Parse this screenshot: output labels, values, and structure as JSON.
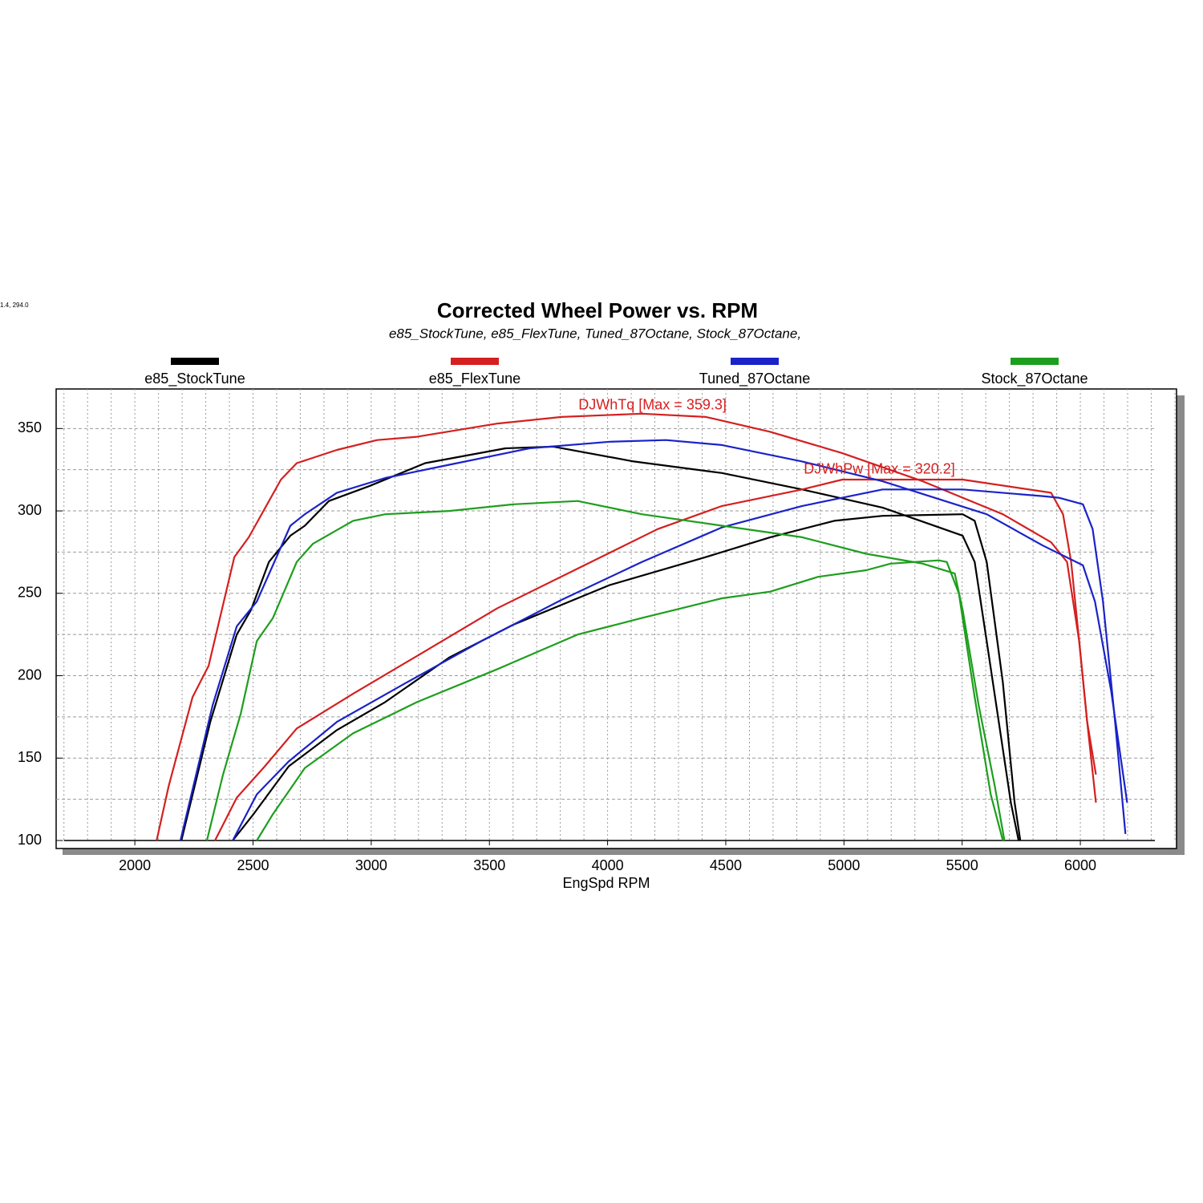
{
  "chart_data": {
    "type": "line",
    "cursor_readout": "1.4, 294.0",
    "title": "Corrected Wheel Power vs. RPM",
    "subtitle": "e85_StockTune, e85_FlexTune, Tuned_87Octane, Stock_87Octane,",
    "x_label": "EngSpd RPM",
    "xlim": [
      1667,
      6407
    ],
    "ylim": [
      100,
      374
    ],
    "xticks": [
      2000,
      2500,
      3000,
      3500,
      4000,
      4500,
      5000,
      5500,
      6000
    ],
    "yticks": [
      100,
      150,
      200,
      250,
      300,
      350
    ],
    "grid": {
      "x_step": 100,
      "y_step": 25
    },
    "annotations": [
      {
        "text": "DJWhTq [Max = 359.3]",
        "x": 4190,
        "y": 364
      },
      {
        "text": "DJWhPw [Max = 320.2]",
        "x": 5150,
        "y": 325
      }
    ],
    "series": [
      {
        "name": "e85_StockTune",
        "color": "#000000",
        "curves": [
          {
            "x": [
              2197,
              2319,
              2431,
              2492,
              2567,
              2658,
              2719,
              2821,
              2991,
              3228,
              3568,
              3771,
              4111,
              4484,
              4823,
              5163,
              5502,
              5553,
              5604,
              5706,
              5739
            ],
            "values": [
              100,
              172,
              225,
              240,
              269,
              285,
              291,
              306,
              315,
              329,
              338,
              339,
              330,
              323,
              313,
              302,
              285,
              269,
              221,
              123,
              100
            ]
          },
          {
            "x": [
              2414,
              2502,
              2651,
              2855,
              3059,
              3330,
              3602,
              4009,
              4416,
              4688,
              4959,
              5163,
              5502,
              5553,
              5604,
              5672,
              5722,
              5746
            ],
            "values": [
              100,
              116,
              145,
              167,
              184,
              211,
              231,
              255,
              272,
              284,
              294,
              297,
              298,
              294,
              269,
              196,
              123,
              100
            ]
          }
        ]
      },
      {
        "name": "e85_FlexTune",
        "color": "#d42020",
        "curves": [
          {
            "x": [
              2092,
              2143,
              2244,
              2312,
              2421,
              2482,
              2618,
              2685,
              2855,
              3025,
              3194,
              3534,
              3805,
              4145,
              4416,
              4688,
              4993,
              5333,
              5672,
              5876,
              5944,
              5995,
              6029,
              6066
            ],
            "values": [
              100,
              133,
              187,
              206,
              272,
              284,
              319,
              329,
              337,
              343,
              345,
              353,
              357,
              359,
              357,
              348,
              335,
              318,
              298,
              281,
              269,
              221,
              172,
              123
            ]
          },
          {
            "x": [
              2339,
              2431,
              2550,
              2685,
              2923,
              3194,
              3534,
              3873,
              4212,
              4484,
              4823,
              4993,
              5333,
              5502,
              5876,
              5927,
              5961,
              5995,
              6029,
              6066
            ],
            "values": [
              100,
              126,
              145,
              168,
              189,
              212,
              241,
              265,
              289,
              303,
              313,
              319,
              319,
              319,
              311,
              298,
              269,
              221,
              172,
              140
            ]
          }
        ]
      },
      {
        "name": "Tuned_87Octane",
        "color": "#1a23c8",
        "curves": [
          {
            "x": [
              2193,
              2329,
              2431,
              2516,
              2658,
              2719,
              2855,
              3059,
              3330,
              3670,
              4009,
              4247,
              4484,
              4823,
              5163,
              5604,
              5841,
              6011,
              6062,
              6130,
              6198
            ],
            "values": [
              100,
              182,
              230,
              245,
              291,
              298,
              311,
              320,
              328,
              338,
              342,
              343,
              340,
              330,
              318,
              298,
              279,
              267,
              245,
              191,
              123
            ]
          },
          {
            "x": [
              2414,
              2516,
              2651,
              2855,
              3126,
              3466,
              3805,
              4145,
              4484,
              4823,
              5163,
              5502,
              5841,
              5909,
              6011,
              6052,
              6096,
              6147,
              6191
            ],
            "values": [
              100,
              128,
              148,
              172,
              194,
              221,
              246,
              269,
              290,
              303,
              313,
              313,
              309,
              308,
              304,
              289,
              245,
              172,
              104
            ]
          }
        ]
      },
      {
        "name": "Stock_87Octane",
        "color": "#1e9e1e",
        "curves": [
          {
            "x": [
              2305,
              2373,
              2448,
              2516,
              2584,
              2685,
              2753,
              2923,
              3059,
              3330,
              3602,
              3873,
              4145,
              4484,
              4823,
              5094,
              5333,
              5469,
              5502,
              5570,
              5638,
              5679
            ],
            "values": [
              100,
              140,
              177,
              221,
              235,
              269,
              280,
              294,
              298,
              300,
              304,
              306,
              298,
              291,
              284,
              274,
              268,
              262,
              240,
              182,
              133,
              100
            ]
          },
          {
            "x": [
              2516,
              2584,
              2719,
              2923,
              3194,
              3534,
              3873,
              4145,
              4484,
              4688,
              4891,
              5094,
              5197,
              5401,
              5435,
              5486,
              5553,
              5621,
              5672
            ],
            "values": [
              100,
              116,
              144,
              165,
              184,
              204,
              225,
              235,
              247,
              251,
              260,
              264,
              268,
              270,
              269,
              250,
              187,
              128,
              100
            ]
          }
        ]
      }
    ]
  }
}
